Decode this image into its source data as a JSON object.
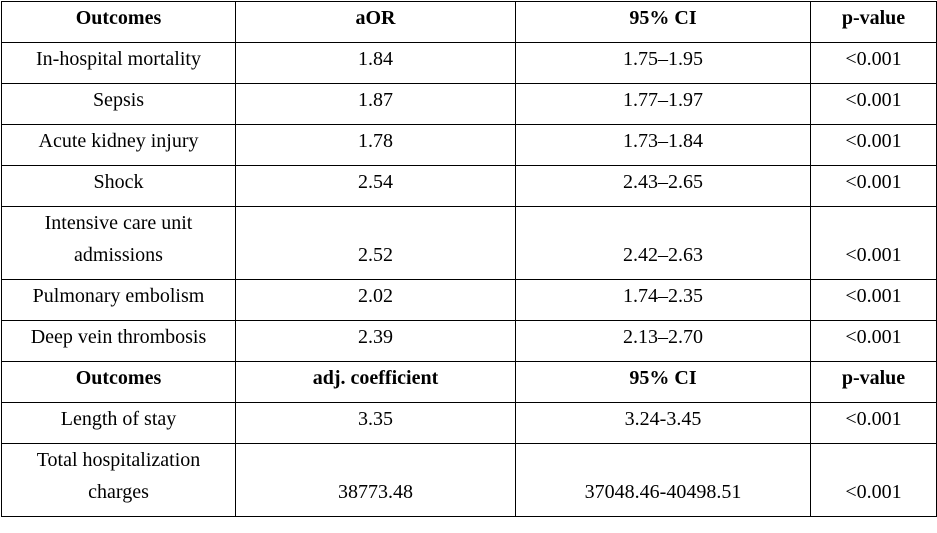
{
  "table": {
    "sections": [
      {
        "header": [
          "Outcomes",
          "aOR",
          "95% CI",
          "p-value"
        ],
        "rows": [
          [
            "In-hospital mortality",
            "1.84",
            "1.75–1.95",
            "<0.001"
          ],
          [
            "Sepsis",
            "1.87",
            "1.77–1.97",
            "<0.001"
          ],
          [
            "Acute kidney injury",
            "1.78",
            "1.73–1.84",
            "<0.001"
          ],
          [
            "Shock",
            "2.54",
            "2.43–2.65",
            "<0.001"
          ],
          [
            "Intensive care unit admissions",
            "2.52",
            "2.42–2.63",
            "<0.001"
          ],
          [
            "Pulmonary embolism",
            "2.02",
            "1.74–2.35",
            "<0.001"
          ],
          [
            "Deep vein thrombosis",
            "2.39",
            "2.13–2.70",
            "<0.001"
          ]
        ]
      },
      {
        "header": [
          "Outcomes",
          "adj. coefficient",
          "95% CI",
          "p-value"
        ],
        "rows": [
          [
            "Length of stay",
            "3.35",
            "3.24-3.45",
            "<0.001"
          ],
          [
            "Total hospitalization charges",
            "38773.48",
            "37048.46-40498.51",
            "<0.001"
          ]
        ]
      }
    ]
  }
}
